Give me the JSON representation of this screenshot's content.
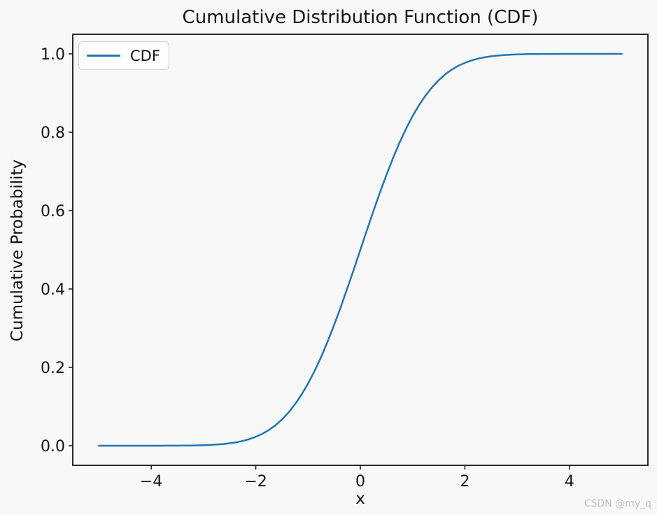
{
  "chart_data": {
    "type": "line",
    "title": "Cumulative Distribution Function (CDF)",
    "xlabel": "x",
    "ylabel": "Cumulative Probability",
    "xlim": [
      -5.5,
      5.5
    ],
    "ylim": [
      -0.05,
      1.05
    ],
    "xticks": [
      -4,
      -2,
      0,
      2,
      4
    ],
    "xtick_labels": [
      "−4",
      "−2",
      "0",
      "2",
      "4"
    ],
    "yticks": [
      0.0,
      0.2,
      0.4,
      0.6,
      0.8,
      1.0
    ],
    "ytick_labels": [
      "0.0",
      "0.2",
      "0.4",
      "0.6",
      "0.8",
      "1.0"
    ],
    "grid": false,
    "legend": {
      "position": "upper left",
      "entries": [
        "CDF"
      ]
    },
    "series": [
      {
        "name": "CDF",
        "color": "#1f77b4",
        "x": [
          -5,
          -4.875,
          -4.75,
          -4.625,
          -4.5,
          -4.375,
          -4.25,
          -4.125,
          -4,
          -3.875,
          -3.75,
          -3.625,
          -3.5,
          -3.375,
          -3.25,
          -3.125,
          -3,
          -2.875,
          -2.75,
          -2.625,
          -2.5,
          -2.375,
          -2.25,
          -2.125,
          -2,
          -1.875,
          -1.75,
          -1.625,
          -1.5,
          -1.375,
          -1.25,
          -1.125,
          -1,
          -0.875,
          -0.75,
          -0.625,
          -0.5,
          -0.375,
          -0.25,
          -0.125,
          0,
          0.125,
          0.25,
          0.375,
          0.5,
          0.625,
          0.75,
          0.875,
          1,
          1.125,
          1.25,
          1.375,
          1.5,
          1.625,
          1.75,
          1.875,
          2,
          2.125,
          2.25,
          2.375,
          2.5,
          2.625,
          2.75,
          2.875,
          3,
          3.125,
          3.25,
          3.375,
          3.5,
          3.625,
          3.75,
          3.875,
          4,
          4.125,
          4.25,
          4.375,
          4.5,
          4.625,
          4.75,
          4.875,
          5
        ],
        "y": [
          0,
          0,
          0,
          0,
          0,
          1e-05,
          1e-05,
          2e-05,
          3e-05,
          5e-05,
          9e-05,
          0.00014,
          0.00023,
          0.00037,
          0.00058,
          0.00089,
          0.00135,
          0.00203,
          0.00298,
          0.00433,
          0.00621,
          0.00878,
          0.01222,
          0.01678,
          0.02275,
          0.0304,
          0.04006,
          0.05208,
          0.06681,
          0.08457,
          0.10565,
          0.1303,
          0.15866,
          0.19079,
          0.22663,
          0.26599,
          0.30854,
          0.35383,
          0.40129,
          0.45026,
          0.5,
          0.54974,
          0.59871,
          0.64617,
          0.69146,
          0.73401,
          0.77337,
          0.80921,
          0.84134,
          0.8697,
          0.89435,
          0.91543,
          0.93319,
          0.94792,
          0.95994,
          0.9696,
          0.97725,
          0.98322,
          0.98778,
          0.99122,
          0.99379,
          0.99567,
          0.99702,
          0.99797,
          0.99865,
          0.99911,
          0.99942,
          0.99963,
          0.99977,
          0.99986,
          0.99991,
          0.99995,
          0.99997,
          0.99998,
          0.99999,
          0.99999,
          1,
          1,
          1,
          1,
          1
        ]
      }
    ]
  },
  "watermark": {
    "text": "CSDN @my_q",
    "color": "#bfc3c6"
  },
  "colors": {
    "background": "#f8f8f8",
    "spine": "#141414",
    "text": "#141414",
    "line": "#1f77b4",
    "legend_border": "#cfcfcf"
  }
}
